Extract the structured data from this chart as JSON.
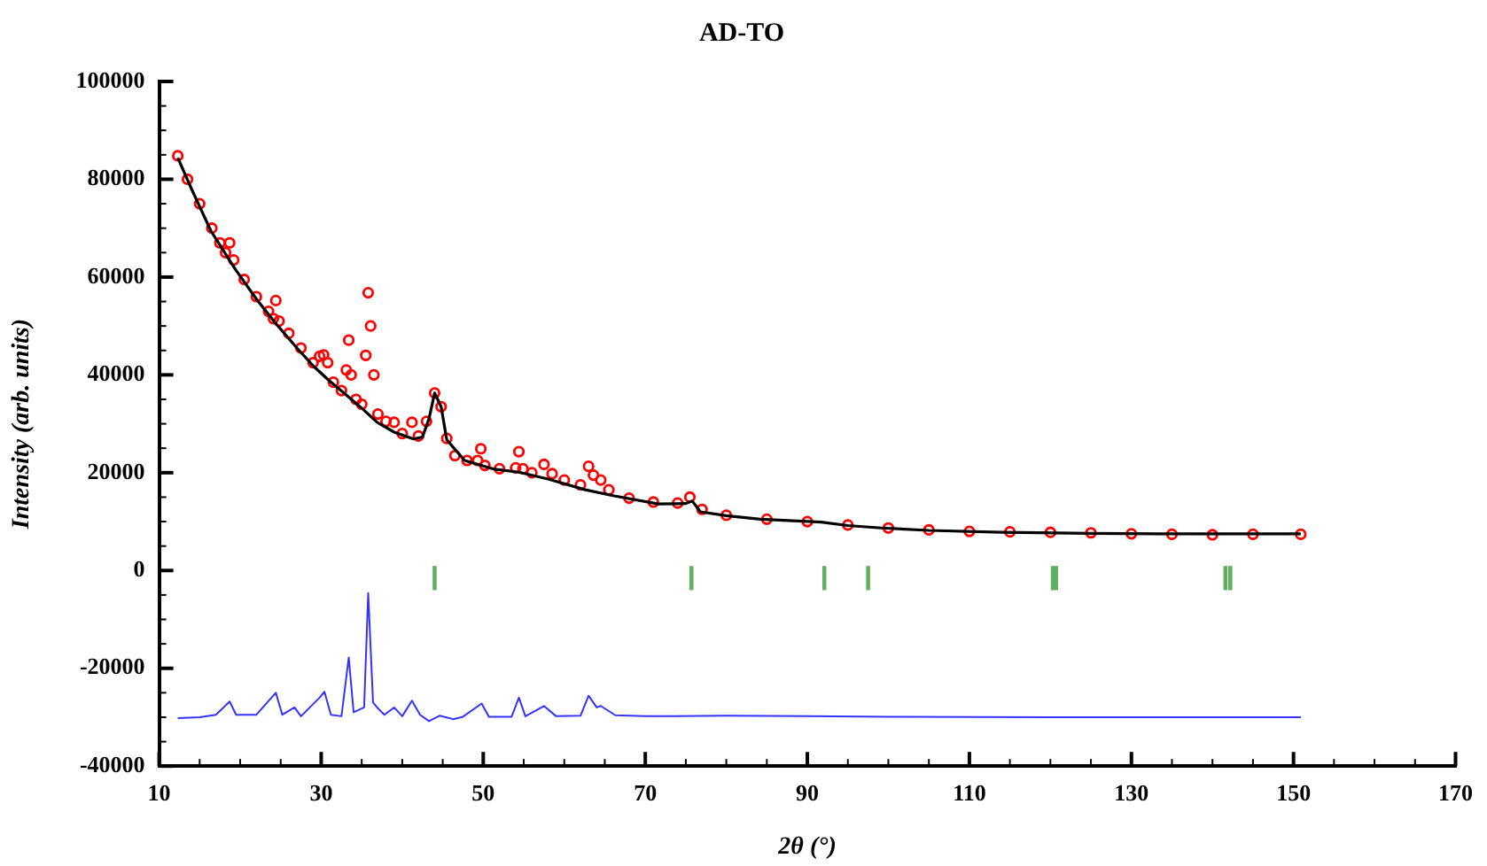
{
  "chart_data": {
    "type": "scatter",
    "title": "AD-TO",
    "xlabel": "2θ (°)",
    "ylabel": "Intensity (arb. units)",
    "xlim": [
      10,
      170
    ],
    "xticks": [
      10,
      {
        "value": 15,
        "label": null
      },
      {
        "value": 20,
        "label": null
      },
      {
        "value": 25,
        "label": null
      },
      30,
      {
        "value": 35,
        "label": null
      },
      {
        "value": 40,
        "label": null
      },
      {
        "value": 45,
        "label": null
      },
      50,
      {
        "value": 55,
        "label": null
      },
      {
        "value": 60,
        "label": null
      },
      {
        "value": 65,
        "label": null
      },
      70,
      {
        "value": 75,
        "label": null
      },
      {
        "value": 80,
        "label": null
      },
      {
        "value": 85,
        "label": null
      },
      90,
      {
        "value": 95,
        "label": null
      },
      {
        "value": 100,
        "label": null
      },
      {
        "value": 105,
        "label": null
      },
      110,
      {
        "value": 115,
        "label": null
      },
      {
        "value": 120,
        "label": null
      },
      {
        "value": 125,
        "label": null
      },
      130,
      {
        "value": 135,
        "label": null
      },
      {
        "value": 140,
        "label": null
      },
      {
        "value": 145,
        "label": null
      },
      150,
      {
        "value": 155,
        "label": null
      },
      {
        "value": 160,
        "label": null
      },
      {
        "value": 165,
        "label": null
      },
      170
    ],
    "ylim": [
      -40000,
      100000
    ],
    "yticks": [
      -40000,
      {
        "value": -35000,
        "label": null
      },
      {
        "value": -30000,
        "label": null
      },
      {
        "value": -25000,
        "label": null
      },
      -20000,
      {
        "value": -15000,
        "label": null
      },
      {
        "value": -10000,
        "label": null
      },
      {
        "value": -5000,
        "label": null
      },
      0,
      {
        "value": 5000,
        "label": null
      },
      {
        "value": 10000,
        "label": null
      },
      {
        "value": 15000,
        "label": null
      },
      20000,
      {
        "value": 25000,
        "label": null
      },
      {
        "value": 30000,
        "label": null
      },
      {
        "value": 35000,
        "label": null
      },
      40000,
      {
        "value": 45000,
        "label": null
      },
      {
        "value": 50000,
        "label": null
      },
      {
        "value": 55000,
        "label": null
      },
      60000,
      {
        "value": 65000,
        "label": null
      },
      {
        "value": 70000,
        "label": null
      },
      {
        "value": 75000,
        "label": null
      },
      80000,
      {
        "value": 85000,
        "label": null
      },
      {
        "value": 90000,
        "label": null
      },
      {
        "value": 95000,
        "label": null
      },
      100000
    ],
    "grid": false,
    "legend": false,
    "series": [
      {
        "type": "scatter",
        "marker": "circle",
        "color": "#ff0000",
        "x": [
          12.3,
          13.5,
          15,
          16.5,
          17.5,
          18.2,
          18.7,
          19.2,
          20.5,
          22,
          23.5,
          24.1,
          24.4,
          24.8,
          26,
          27.5,
          29,
          29.8,
          30.3,
          30.8,
          31.5,
          32.5,
          33.1,
          33.4,
          33.7,
          34.3,
          35,
          35.5,
          35.8,
          36.1,
          36.5,
          37,
          38,
          39,
          40,
          41.2,
          42,
          43,
          44,
          44.8,
          45.5,
          46.5,
          48,
          49.3,
          49.7,
          50.2,
          52,
          54,
          54.4,
          54.9,
          56,
          57.5,
          58.5,
          60,
          62,
          63,
          63.6,
          64.5,
          65.5,
          68,
          71,
          74,
          75.5,
          77,
          80,
          85,
          90,
          95,
          100,
          105,
          110,
          115,
          120,
          125,
          130,
          135,
          140,
          145,
          150.9
        ],
        "values": [
          84800,
          80000,
          75000,
          70000,
          67000,
          65000,
          67000,
          63500,
          59500,
          56000,
          53000,
          51500,
          55200,
          51000,
          48500,
          45500,
          42500,
          43800,
          44100,
          42500,
          38500,
          36800,
          41000,
          47100,
          40000,
          35000,
          34000,
          44000,
          56800,
          50000,
          40000,
          32000,
          30500,
          30300,
          28000,
          30300,
          27500,
          30500,
          36300,
          33500,
          27000,
          23500,
          22500,
          22500,
          24900,
          21500,
          20800,
          21000,
          24300,
          20800,
          20000,
          21700,
          19800,
          18500,
          17500,
          21300,
          19500,
          18500,
          16500,
          14800,
          14000,
          13800,
          15000,
          12500,
          11300,
          10500,
          10000,
          9300,
          8700,
          8300,
          8000,
          7900,
          7800,
          7700,
          7500,
          7400,
          7300,
          7400,
          7400
        ]
      },
      {
        "type": "line",
        "color": "#000000",
        "x": [
          12.3,
          14,
          16.4,
          19.4,
          22,
          24.3,
          27,
          29.1,
          31,
          32.8,
          35,
          36.9,
          39,
          41.4,
          42.5,
          43.3,
          44,
          44.8,
          45.5,
          47.7,
          51.4,
          54.4,
          58,
          62.6,
          66,
          71.6,
          75,
          75.8,
          76.8,
          80,
          84.2,
          91.7,
          95,
          99.1,
          105,
          114,
          125,
          133.4,
          142,
          150.9
        ],
        "values": [
          84400,
          78000,
          69400,
          61600,
          55500,
          50700,
          45500,
          41700,
          38800,
          36300,
          33200,
          30300,
          28300,
          26900,
          27300,
          31000,
          36300,
          33500,
          26700,
          22500,
          20700,
          20100,
          18700,
          16500,
          15300,
          13600,
          13700,
          14200,
          12000,
          11200,
          10500,
          9900,
          9200,
          8700,
          8200,
          7800,
          7600,
          7500,
          7500,
          7500
        ]
      },
      {
        "type": "line",
        "color": "#3333ff",
        "x": [
          12.3,
          15,
          17,
          18.7,
          19.5,
          22,
          24.4,
          25.2,
          26.7,
          27.5,
          29.8,
          30.4,
          31.2,
          32.5,
          33.4,
          34,
          35.3,
          35.8,
          36.4,
          36.9,
          37.8,
          39,
          40,
          41.2,
          42.2,
          43.3,
          44.6,
          46.3,
          47.5,
          49.8,
          50.7,
          53.5,
          54.4,
          55.2,
          57.5,
          59,
          62,
          63,
          64,
          64.5,
          66.3,
          70,
          80,
          90,
          100,
          120,
          150.9
        ],
        "values": [
          -30200,
          -30000,
          -29500,
          -26800,
          -29500,
          -29500,
          -25000,
          -29500,
          -28000,
          -29800,
          -26000,
          -24800,
          -29500,
          -29800,
          -17800,
          -29000,
          -28000,
          -4600,
          -27000,
          -28000,
          -29500,
          -28000,
          -29800,
          -26600,
          -29500,
          -30800,
          -29700,
          -30400,
          -29900,
          -27200,
          -29900,
          -29900,
          -26000,
          -29800,
          -27700,
          -29800,
          -29700,
          -25600,
          -28000,
          -27700,
          -29600,
          -29800,
          -29700,
          -29800,
          -29900,
          -30000,
          -30000
        ]
      },
      {
        "type": "bar",
        "color": "#5fb05f",
        "x": [
          44.0,
          75.7,
          92.1,
          97.5,
          120.3,
          120.7,
          141.6,
          142.2
        ],
        "base": [
          -3900,
          -3900,
          -3900,
          -3900,
          -3900,
          -3900,
          -3900,
          -3900
        ],
        "values": [
          4700,
          4700,
          4700,
          4700,
          4700,
          4700,
          4700,
          4700
        ]
      }
    ]
  }
}
